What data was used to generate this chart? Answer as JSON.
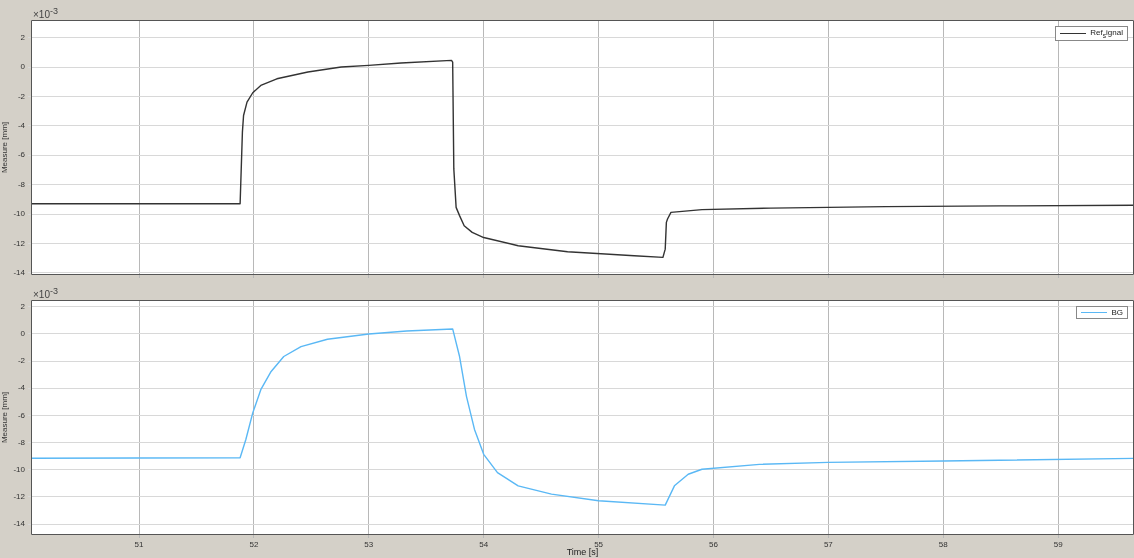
{
  "chart_data": [
    {
      "type": "line",
      "ylabel": "Measure [mm]",
      "annotations": [
        "×10$^{-3}$"
      ],
      "xlim": [
        50.06,
        59.66
      ],
      "xticks": [
        51,
        52,
        53,
        54,
        55,
        56,
        57,
        58,
        59
      ],
      "ylim": [
        -14.15,
        3.2
      ],
      "yticks": [
        -14,
        -12,
        -10,
        -8,
        -6,
        -4,
        -2,
        0,
        2
      ],
      "grid": true,
      "legend": "top right",
      "tick_labels": "y",
      "x": [
        50.06,
        51.88,
        51.9,
        51.91,
        51.94,
        51.99,
        52.06,
        52.2,
        52.47,
        52.76,
        53.0,
        53.28,
        53.72,
        53.73,
        53.74,
        53.76,
        53.79,
        53.83,
        53.9,
        54.0,
        54.3,
        54.73,
        55.31,
        55.56,
        55.58,
        55.59,
        55.6,
        55.63,
        55.9,
        56.5,
        57.5,
        58.5,
        59.66
      ],
      "series": [
        {
          "name": "Ref$_{s}$ignal",
          "color": "#333333",
          "values": [
            -9.3,
            -9.3,
            -4.43,
            -3.3,
            -2.39,
            -1.75,
            -1.25,
            -0.8,
            -0.34,
            0.0,
            0.11,
            0.27,
            0.45,
            0.34,
            -6.93,
            -9.55,
            -10.11,
            -10.8,
            -11.25,
            -11.6,
            -12.16,
            -12.57,
            -12.84,
            -12.95,
            -12.39,
            -10.57,
            -10.34,
            -9.89,
            -9.7,
            -9.6,
            -9.5,
            -9.45,
            -9.4
          ]
        }
      ]
    },
    {
      "type": "line",
      "xlabel": "Time [s]",
      "ylabel": "Measure [mm]",
      "annotations": [
        "×10$^{-3}$"
      ],
      "xlim": [
        50.06,
        59.66
      ],
      "xticks": [
        51,
        52,
        53,
        54,
        55,
        56,
        57,
        58,
        59
      ],
      "ylim": [
        -14.8,
        2.5
      ],
      "yticks": [
        -14,
        -12,
        -10,
        -8,
        -6,
        -4,
        -2,
        0,
        2
      ],
      "grid": true,
      "legend": "top right",
      "x": [
        50.06,
        51.88,
        51.93,
        51.99,
        52.06,
        52.15,
        52.26,
        52.41,
        52.64,
        53.0,
        53.33,
        53.73,
        53.79,
        53.85,
        53.92,
        54.0,
        54.12,
        54.3,
        54.59,
        55.0,
        55.58,
        55.66,
        55.78,
        55.9,
        56.4,
        57.0,
        58.0,
        59.66
      ],
      "series": [
        {
          "name": "BG",
          "color": "#5ab8f5",
          "values": [
            -9.15,
            -9.11,
            -7.77,
            -5.81,
            -4.1,
            -2.76,
            -1.66,
            -0.93,
            -0.39,
            0.0,
            0.22,
            0.37,
            -1.66,
            -4.59,
            -7.03,
            -8.86,
            -10.21,
            -11.18,
            -11.79,
            -12.28,
            -12.6,
            -11.18,
            -10.33,
            -9.96,
            -9.6,
            -9.45,
            -9.35,
            -9.16
          ]
        }
      ]
    }
  ]
}
